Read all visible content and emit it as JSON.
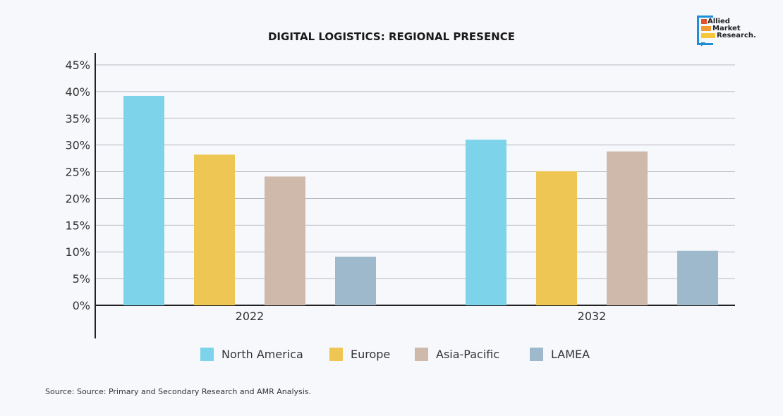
{
  "logo_text": "Allied Market Research",
  "source": "Source: Source: Primary and Secondary Research and AMR Analysis.",
  "chart_data": {
    "type": "bar",
    "title": "DIGITAL LOGISTICS: REGIONAL PRESENCE",
    "categories": [
      "2022",
      "2032"
    ],
    "series": [
      {
        "name": "North America",
        "color": "#7dd3ea",
        "values": [
          39.2,
          31.0
        ]
      },
      {
        "name": "Europe",
        "color": "#edc654",
        "values": [
          28.2,
          25.1
        ]
      },
      {
        "name": "Asia-Pacific",
        "color": "#cfb9aa",
        "values": [
          24.1,
          28.8
        ]
      },
      {
        "name": "LAMEA",
        "color": "#9fb9cc",
        "values": [
          9.1,
          10.2
        ]
      }
    ],
    "yticks": [
      "0%",
      "5%",
      "10%",
      "15%",
      "20%",
      "25%",
      "30%",
      "35%",
      "40%",
      "45%"
    ],
    "ylim": [
      0,
      45
    ],
    "grid": true,
    "legend": "bottom"
  }
}
